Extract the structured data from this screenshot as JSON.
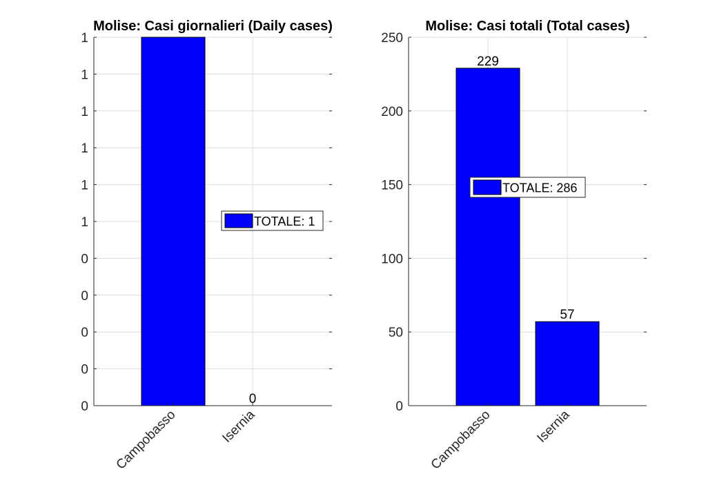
{
  "chart_data": [
    {
      "type": "bar",
      "title": "Molise: Casi giornalieri (Daily cases)",
      "categories": [
        "Campobasso",
        "Isernia"
      ],
      "values": [
        1,
        0
      ],
      "data_labels": [
        "",
        "0"
      ],
      "ylim": [
        0,
        1
      ],
      "yticks": [
        0,
        0.1,
        0.2,
        0.3,
        0.4,
        0.5,
        0.6,
        0.7,
        0.8,
        0.9,
        1
      ],
      "ytick_labels": [
        "0",
        "0",
        "0",
        "0",
        "0",
        "1",
        "1",
        "1",
        "1",
        "1",
        "1"
      ],
      "grid": true,
      "legend": {
        "label": "TOTALE: 1",
        "placement": "right"
      },
      "bar_color": "#0000ff"
    },
    {
      "type": "bar",
      "title": "Molise: Casi totali (Total cases)",
      "categories": [
        "Campobasso",
        "Isernia"
      ],
      "values": [
        229,
        57
      ],
      "data_labels": [
        "229",
        "57"
      ],
      "ylim": [
        0,
        250
      ],
      "yticks": [
        0,
        50,
        100,
        150,
        200,
        250
      ],
      "ytick_labels": [
        "0",
        "50",
        "100",
        "150",
        "200",
        "250"
      ],
      "grid": true,
      "legend": {
        "label": "TOTALE: 286",
        "placement": "center"
      },
      "bar_color": "#0000ff"
    }
  ]
}
